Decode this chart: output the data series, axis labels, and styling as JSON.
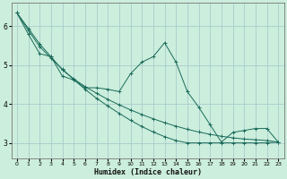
{
  "xlabel": "Humidex (Indice chaleur)",
  "background_color": "#cceedd",
  "grid_color": "#aacccc",
  "line_color": "#1a6b5a",
  "xlim": [
    -0.5,
    23.5
  ],
  "ylim": [
    2.6,
    6.6
  ],
  "yticks": [
    3,
    4,
    5,
    6
  ],
  "xticks": [
    0,
    1,
    2,
    3,
    4,
    5,
    6,
    7,
    8,
    9,
    10,
    11,
    12,
    13,
    14,
    15,
    16,
    17,
    18,
    19,
    20,
    21,
    22,
    23
  ],
  "line1": [
    6.35,
    5.8,
    5.3,
    5.22,
    4.72,
    4.62,
    4.42,
    4.42,
    4.38,
    4.32,
    4.78,
    5.08,
    5.22,
    5.58,
    5.08,
    4.32,
    3.92,
    3.47,
    3.02,
    3.27,
    3.32,
    3.37,
    3.37,
    3.02
  ],
  "line2": [
    6.35,
    5.95,
    5.55,
    5.22,
    4.88,
    4.65,
    4.45,
    4.28,
    4.12,
    3.98,
    3.85,
    3.73,
    3.62,
    3.52,
    3.43,
    3.35,
    3.28,
    3.22,
    3.17,
    3.13,
    3.1,
    3.08,
    3.06,
    3.02
  ],
  "line3": [
    6.35,
    5.9,
    5.48,
    5.18,
    4.9,
    4.63,
    4.38,
    4.15,
    3.95,
    3.76,
    3.58,
    3.42,
    3.28,
    3.16,
    3.06,
    3.0,
    3.0,
    3.0,
    3.0,
    3.0,
    3.0,
    3.0,
    3.0,
    3.02
  ]
}
